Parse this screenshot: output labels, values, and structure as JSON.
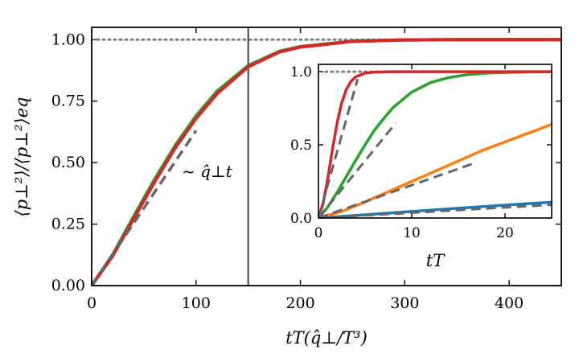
{
  "chart_data": [
    {
      "type": "line",
      "panel": "main",
      "title": "",
      "xlabel": "tT(q̂⊥/T³)",
      "ylabel": "⟨p⊥²⟩/⟨p⊥²⟩eq",
      "xlim": [
        0,
        450
      ],
      "ylim": [
        0,
        1.05
      ],
      "xticks": [
        0,
        100,
        200,
        300,
        400
      ],
      "xtick_labels": [
        "0",
        "100",
        "200",
        "300",
        "400"
      ],
      "yticks": [
        0,
        0.25,
        0.5,
        0.75,
        1.0
      ],
      "ytick_labels": [
        "0.00",
        "0.25",
        "0.50",
        "0.75",
        "1.00"
      ],
      "vertical_line_x": 150,
      "reference_y": 1.0,
      "annotation": "~ q̂⊥t",
      "series": [
        {
          "name": "blue",
          "color": "#1f77b4",
          "style": "solid",
          "x": [
            0,
            20,
            40,
            60,
            80,
            100,
            120,
            150,
            180,
            200,
            250,
            300,
            350,
            400,
            450
          ],
          "y": [
            0,
            0.12,
            0.27,
            0.42,
            0.56,
            0.68,
            0.78,
            0.89,
            0.95,
            0.97,
            0.993,
            0.999,
            1.0,
            1.0,
            1.0
          ]
        },
        {
          "name": "orange",
          "color": "#ff7f0e",
          "style": "solid",
          "x": [
            0,
            20,
            40,
            60,
            80,
            100,
            120,
            150,
            180,
            200,
            250,
            300,
            350,
            400,
            450
          ],
          "y": [
            0,
            0.12,
            0.27,
            0.42,
            0.56,
            0.68,
            0.78,
            0.89,
            0.95,
            0.97,
            0.993,
            0.999,
            1.0,
            1.0,
            1.0
          ]
        },
        {
          "name": "green",
          "color": "#2ca02c",
          "style": "solid",
          "x": [
            0,
            20,
            40,
            60,
            80,
            100,
            120,
            150,
            180,
            200,
            250,
            300,
            350,
            400,
            450
          ],
          "y": [
            0,
            0.125,
            0.28,
            0.43,
            0.57,
            0.69,
            0.79,
            0.895,
            0.953,
            0.972,
            0.994,
            0.999,
            1.0,
            1.0,
            1.0
          ]
        },
        {
          "name": "red",
          "color": "#d62728",
          "style": "solid",
          "x": [
            0,
            20,
            40,
            60,
            80,
            100,
            120,
            150,
            180,
            200,
            250,
            300,
            350,
            400,
            450
          ],
          "y": [
            0,
            0.12,
            0.27,
            0.42,
            0.56,
            0.68,
            0.78,
            0.89,
            0.95,
            0.97,
            0.993,
            0.999,
            1.0,
            1.0,
            1.0
          ]
        },
        {
          "name": "linear-fit",
          "color": "#666666",
          "style": "dashed",
          "x": [
            0,
            100
          ],
          "y": [
            0,
            0.63
          ]
        }
      ]
    },
    {
      "type": "line",
      "panel": "inset",
      "title": "",
      "xlabel": "tT",
      "ylabel": "",
      "xlim": [
        0,
        25
      ],
      "ylim": [
        0,
        1.05
      ],
      "xticks": [
        0,
        10,
        20
      ],
      "xtick_labels": [
        "0",
        "10",
        "20"
      ],
      "yticks": [
        0,
        0.5,
        1.0
      ],
      "ytick_labels": [
        "0.0",
        "0.5",
        "1.0"
      ],
      "reference_y": 1.0,
      "series": [
        {
          "name": "blue",
          "color": "#1f77b4",
          "style": "solid",
          "x": [
            0,
            5,
            10,
            15,
            20,
            25
          ],
          "y": [
            0,
            0.022,
            0.045,
            0.067,
            0.088,
            0.108
          ]
        },
        {
          "name": "orange",
          "color": "#ff7f0e",
          "style": "solid",
          "x": [
            0,
            2.5,
            5,
            7.5,
            10,
            12.5,
            15,
            17.5,
            20,
            22.5,
            25
          ],
          "y": [
            0,
            0.045,
            0.11,
            0.18,
            0.25,
            0.32,
            0.39,
            0.46,
            0.52,
            0.58,
            0.64
          ]
        },
        {
          "name": "green",
          "color": "#2ca02c",
          "style": "solid",
          "x": [
            0,
            1,
            2,
            3,
            4,
            5,
            6,
            7,
            8,
            10,
            12,
            14,
            16,
            18,
            20,
            22,
            25
          ],
          "y": [
            0,
            0.075,
            0.175,
            0.285,
            0.395,
            0.5,
            0.6,
            0.68,
            0.755,
            0.86,
            0.925,
            0.96,
            0.98,
            0.99,
            0.995,
            0.998,
            1.0
          ]
        },
        {
          "name": "red",
          "color": "#d62728",
          "style": "solid",
          "x": [
            0,
            0.5,
            1,
            1.5,
            2,
            2.5,
            3,
            3.5,
            4,
            5,
            6,
            8,
            10,
            15,
            20,
            25
          ],
          "y": [
            0,
            0.1,
            0.27,
            0.47,
            0.65,
            0.79,
            0.88,
            0.935,
            0.965,
            0.99,
            0.997,
            1.0,
            1.0,
            1.0,
            1.0,
            1.0
          ]
        },
        {
          "name": "red-linear-fit",
          "color": "#666666",
          "style": "dashed",
          "x": [
            0,
            4.2
          ],
          "y": [
            0,
            0.95
          ]
        },
        {
          "name": "green-linear-fit",
          "color": "#666666",
          "style": "dashed",
          "x": [
            0,
            8.3
          ],
          "y": [
            0,
            0.65
          ]
        },
        {
          "name": "orange-linear-fit",
          "color": "#666666",
          "style": "dashed",
          "x": [
            0,
            16.5
          ],
          "y": [
            0,
            0.37
          ]
        },
        {
          "name": "blue-linear-fit",
          "color": "#666666",
          "style": "dashed",
          "x": [
            0,
            25
          ],
          "y": [
            0,
            0.09
          ]
        }
      ]
    }
  ]
}
